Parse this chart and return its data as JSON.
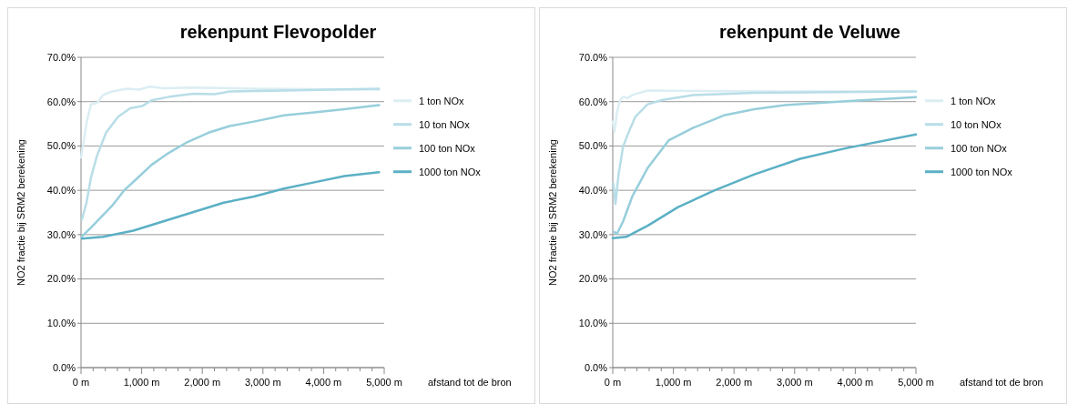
{
  "chart_data": [
    {
      "type": "line",
      "title": "rekenpunt Flevopolder",
      "xlabel": "afstand tot de bron",
      "ylabel": "NO2 fractie bij SRM2 berekening",
      "xlim": [
        0,
        5000
      ],
      "ylim": [
        0,
        70
      ],
      "grid": "y",
      "legend": "right",
      "line_style": "solid",
      "marker": "none",
      "xticks": [
        {
          "value": 0,
          "label": "0 m"
        },
        {
          "value": 200,
          "label": null
        },
        {
          "value": 400,
          "label": null
        },
        {
          "value": 600,
          "label": null
        },
        {
          "value": 800,
          "label": null
        },
        {
          "value": 1000,
          "label": "1,000 m"
        },
        {
          "value": 1200,
          "label": null
        },
        {
          "value": 1400,
          "label": null
        },
        {
          "value": 1600,
          "label": null
        },
        {
          "value": 1800,
          "label": null
        },
        {
          "value": 2000,
          "label": "2,000 m"
        },
        {
          "value": 2200,
          "label": null
        },
        {
          "value": 2400,
          "label": null
        },
        {
          "value": 2600,
          "label": null
        },
        {
          "value": 2800,
          "label": null
        },
        {
          "value": 3000,
          "label": "3,000 m"
        },
        {
          "value": 3200,
          "label": null
        },
        {
          "value": 3400,
          "label": null
        },
        {
          "value": 3600,
          "label": null
        },
        {
          "value": 3800,
          "label": null
        },
        {
          "value": 4000,
          "label": "4,000 m"
        },
        {
          "value": 4200,
          "label": null
        },
        {
          "value": 4400,
          "label": null
        },
        {
          "value": 4600,
          "label": null
        },
        {
          "value": 4800,
          "label": null
        },
        {
          "value": 5000,
          "label": "5,000 m"
        }
      ],
      "yticks": [
        {
          "value": 0,
          "label": "0.0%"
        },
        {
          "value": 10,
          "label": "10.0%"
        },
        {
          "value": 20,
          "label": "20.0%"
        },
        {
          "value": 30,
          "label": "30.0%"
        },
        {
          "value": 40,
          "label": "40.0%"
        },
        {
          "value": 50,
          "label": "50.0%"
        },
        {
          "value": 60,
          "label": "60.0%"
        },
        {
          "value": 70,
          "label": "70.0%"
        }
      ],
      "series": [
        {
          "name": "1 ton NOx",
          "color": "#dbeef3",
          "x": [
            0,
            40,
            90,
            164,
            264,
            363,
            512,
            761,
            960,
            1134,
            1358,
            1856,
            2851,
            4915
          ],
          "values": [
            47.4,
            50.6,
            55.2,
            59.4,
            59.7,
            61.5,
            62.3,
            62.9,
            62.7,
            63.4,
            63.0,
            63.2,
            62.9,
            62.7
          ]
        },
        {
          "name": "10 ton NOx",
          "color": "#b8dde7",
          "x": [
            15,
            90,
            164,
            264,
            413,
            612,
            811,
            1010,
            1159,
            1458,
            1856,
            2204,
            2453,
            3348,
            4915
          ],
          "values": [
            33.4,
            37.2,
            42.9,
            47.8,
            53.0,
            56.6,
            58.5,
            59.0,
            60.3,
            61.1,
            61.8,
            61.7,
            62.3,
            62.5,
            62.9
          ]
        },
        {
          "name": "100 ton NOx",
          "color": "#97cedb",
          "x": [
            15,
            164,
            363,
            512,
            711,
            910,
            1159,
            1408,
            1756,
            2104,
            2453,
            2851,
            3348,
            3846,
            4343,
            4915
          ],
          "values": [
            29.6,
            31.6,
            34.4,
            36.5,
            40.0,
            42.5,
            45.7,
            48.1,
            50.9,
            53.0,
            54.5,
            55.5,
            56.9,
            57.6,
            58.3,
            59.2
          ]
        },
        {
          "name": "1000 ton NOx",
          "color": "#5bb0c5",
          "x": [
            15,
            363,
            861,
            1358,
            1856,
            2353,
            2851,
            3348,
            3846,
            4343,
            4915
          ],
          "values": [
            29.1,
            29.5,
            30.9,
            33.0,
            35.1,
            37.2,
            38.6,
            40.4,
            41.8,
            43.2,
            44.1
          ]
        }
      ]
    },
    {
      "type": "line",
      "title": "rekenpunt de Veluwe",
      "xlabel": "afstand tot de bron",
      "ylabel": "NO2 fractie bij SRM2 berekening",
      "xlim": [
        0,
        5000
      ],
      "ylim": [
        0,
        70
      ],
      "grid": "y",
      "legend": "right",
      "line_style": "solid",
      "marker": "none",
      "xticks": [
        {
          "value": 0,
          "label": "0 m"
        },
        {
          "value": 200,
          "label": null
        },
        {
          "value": 400,
          "label": null
        },
        {
          "value": 600,
          "label": null
        },
        {
          "value": 800,
          "label": null
        },
        {
          "value": 1000,
          "label": "1,000 m"
        },
        {
          "value": 1200,
          "label": null
        },
        {
          "value": 1400,
          "label": null
        },
        {
          "value": 1600,
          "label": null
        },
        {
          "value": 1800,
          "label": null
        },
        {
          "value": 2000,
          "label": "2,000 m"
        },
        {
          "value": 2200,
          "label": null
        },
        {
          "value": 2400,
          "label": null
        },
        {
          "value": 2600,
          "label": null
        },
        {
          "value": 2800,
          "label": null
        },
        {
          "value": 3000,
          "label": "3,000 m"
        },
        {
          "value": 3200,
          "label": null
        },
        {
          "value": 3400,
          "label": null
        },
        {
          "value": 3600,
          "label": null
        },
        {
          "value": 3800,
          "label": null
        },
        {
          "value": 4000,
          "label": "4,000 m"
        },
        {
          "value": 4200,
          "label": null
        },
        {
          "value": 4400,
          "label": null
        },
        {
          "value": 4600,
          "label": null
        },
        {
          "value": 4800,
          "label": null
        },
        {
          "value": 5000,
          "label": "5,000 m"
        }
      ],
      "yticks": [
        {
          "value": 0,
          "label": "0.0%"
        },
        {
          "value": 10,
          "label": "10.0%"
        },
        {
          "value": 20,
          "label": "20.0%"
        },
        {
          "value": 30,
          "label": "30.0%"
        },
        {
          "value": 40,
          "label": "40.0%"
        },
        {
          "value": 50,
          "label": "50.0%"
        },
        {
          "value": 60,
          "label": "60.0%"
        },
        {
          "value": 70,
          "label": "70.0%"
        }
      ],
      "series": [
        {
          "name": "1 ton NOx",
          "color": "#dbeef3",
          "x": [
            0,
            30,
            70,
            121,
            171,
            247,
            322,
            574,
            1329,
            2840,
            5000
          ],
          "values": [
            55.5,
            53.2,
            57.6,
            60.4,
            61.1,
            60.8,
            61.5,
            62.5,
            62.4,
            62.3,
            62.3
          ]
        },
        {
          "name": "10 ton NOx",
          "color": "#b8dde7",
          "x": [
            10,
            45,
            96,
            171,
            272,
            373,
            574,
            826,
            1329,
            2336,
            5000
          ],
          "values": [
            41.5,
            36.9,
            43.6,
            49.9,
            53.4,
            56.6,
            59.4,
            60.4,
            61.5,
            62.0,
            62.3
          ]
        },
        {
          "name": "100 ton NOx",
          "color": "#97cedb",
          "x": [
            20,
            70,
            171,
            322,
            574,
            926,
            1329,
            1833,
            2336,
            2840,
            3847,
            5000
          ],
          "values": [
            30.6,
            30.2,
            33.0,
            38.6,
            45.0,
            51.3,
            54.1,
            56.9,
            58.3,
            59.2,
            60.1,
            61.0
          ]
        },
        {
          "name": "1000 ton NOx",
          "color": "#5bb0c5",
          "x": [
            0,
            222,
            574,
            1077,
            1682,
            2336,
            3091,
            3847,
            5000
          ],
          "values": [
            29.2,
            29.5,
            32.0,
            36.2,
            40.0,
            43.6,
            47.1,
            49.5,
            52.6
          ]
        }
      ]
    }
  ]
}
